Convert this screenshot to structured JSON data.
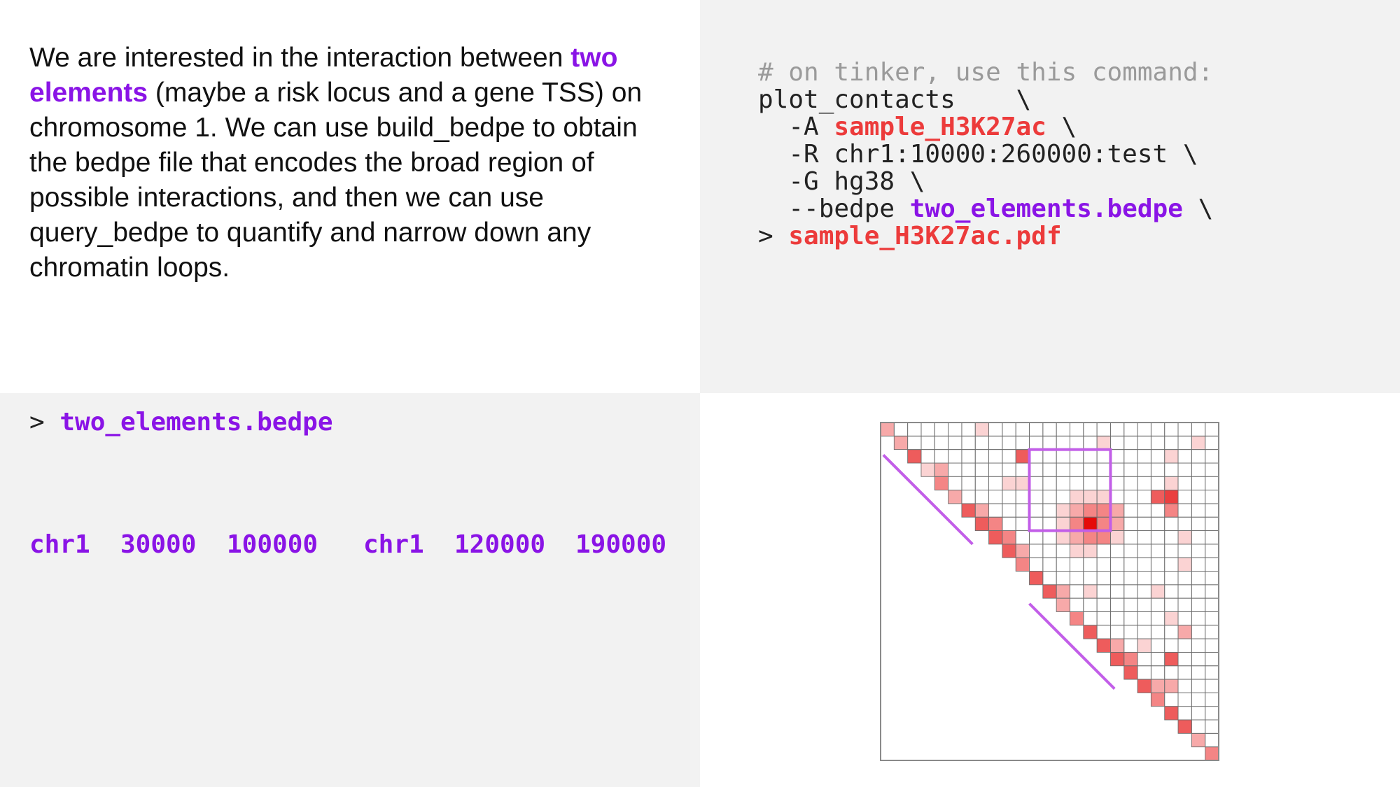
{
  "intro": {
    "before": "We are interested in the interaction between ",
    "highlight": "two elements",
    "after": " (maybe a risk locus and a gene TSS) on chromosome 1. We can use build_bedpe to obtain the bedpe file that encodes the broad region of possible interactions, and then we can use query_bedpe to quantify and narrow down any chromatin loops."
  },
  "command": {
    "comment": "# on tinker, use this command:",
    "line1": "plot_contacts    \\",
    "a_flag": "  -A ",
    "a_value": "sample_H3K27ac",
    "a_cont": " \\",
    "r_line": "  -R chr1:10000:260000:test \\",
    "g_line": "  -G hg38 \\",
    "bedpe_flag": "  --bedpe ",
    "bedpe_value": "two_elements.bedpe",
    "bedpe_cont": " \\",
    "redirect": "> ",
    "output_file": "sample_H3K27ac.pdf"
  },
  "bedpe_file": {
    "prompt": "> ",
    "name": "two_elements.bedpe",
    "fields": [
      "chr1",
      "30000",
      "100000",
      "chr1",
      "120000",
      "190000"
    ]
  },
  "colors": {
    "accent_purple": "#8a14e6",
    "accent_red": "#ec3b3b",
    "box_purple": "#c25ee8",
    "grid_line": "#6e6e6e"
  },
  "heatmap": {
    "grid_size": 25,
    "description_cells": {
      "diagonal": "filled red cells along the diagonal",
      "focus_row": 7,
      "focus_col": 15
    },
    "highlight_box": {
      "row_start": 2,
      "row_end": 8,
      "col_start": 11,
      "col_end": 17
    },
    "cells": [
      [
        0,
        0,
        2
      ],
      [
        1,
        1,
        2
      ],
      [
        2,
        2,
        4
      ],
      [
        3,
        3,
        1
      ],
      [
        4,
        4,
        3
      ],
      [
        5,
        5,
        2
      ],
      [
        6,
        6,
        4
      ],
      [
        7,
        7,
        4
      ],
      [
        8,
        8,
        4
      ],
      [
        9,
        9,
        4
      ],
      [
        10,
        10,
        3
      ],
      [
        11,
        11,
        4
      ],
      [
        12,
        12,
        4
      ],
      [
        13,
        13,
        2
      ],
      [
        14,
        14,
        3
      ],
      [
        15,
        15,
        4
      ],
      [
        16,
        16,
        4
      ],
      [
        17,
        17,
        4
      ],
      [
        18,
        18,
        4
      ],
      [
        19,
        19,
        4
      ],
      [
        20,
        20,
        3
      ],
      [
        21,
        21,
        4
      ],
      [
        22,
        22,
        4
      ],
      [
        23,
        23,
        2
      ],
      [
        24,
        24,
        3
      ],
      [
        3,
        4,
        2
      ],
      [
        6,
        7,
        2
      ],
      [
        7,
        8,
        3
      ],
      [
        8,
        9,
        3
      ],
      [
        9,
        10,
        2
      ],
      [
        12,
        13,
        2
      ],
      [
        16,
        17,
        2
      ],
      [
        17,
        18,
        3
      ],
      [
        19,
        20,
        2
      ],
      [
        0,
        7,
        1
      ],
      [
        2,
        10,
        4
      ],
      [
        1,
        16,
        1
      ],
      [
        1,
        23,
        1
      ],
      [
        2,
        21,
        1
      ],
      [
        4,
        9,
        1
      ],
      [
        4,
        10,
        1
      ],
      [
        5,
        15,
        1
      ],
      [
        4,
        21,
        1
      ],
      [
        5,
        20,
        4
      ],
      [
        5,
        21,
        5
      ],
      [
        6,
        21,
        3
      ],
      [
        8,
        22,
        1
      ],
      [
        10,
        22,
        1
      ],
      [
        12,
        15,
        1
      ],
      [
        12,
        20,
        1
      ],
      [
        14,
        21,
        1
      ],
      [
        15,
        22,
        2
      ],
      [
        17,
        21,
        4
      ],
      [
        19,
        21,
        2
      ],
      [
        16,
        19,
        1
      ],
      [
        5,
        14,
        1
      ],
      [
        5,
        15,
        1
      ],
      [
        5,
        16,
        1
      ],
      [
        6,
        13,
        1
      ],
      [
        6,
        14,
        2
      ],
      [
        6,
        15,
        3
      ],
      [
        6,
        16,
        3
      ],
      [
        6,
        17,
        2
      ],
      [
        7,
        13,
        1
      ],
      [
        7,
        14,
        3
      ],
      [
        7,
        15,
        6
      ],
      [
        7,
        16,
        3
      ],
      [
        7,
        17,
        2
      ],
      [
        8,
        13,
        1
      ],
      [
        8,
        14,
        2
      ],
      [
        8,
        15,
        3
      ],
      [
        8,
        16,
        3
      ],
      [
        8,
        17,
        1
      ],
      [
        9,
        14,
        1
      ],
      [
        9,
        15,
        1
      ]
    ]
  }
}
